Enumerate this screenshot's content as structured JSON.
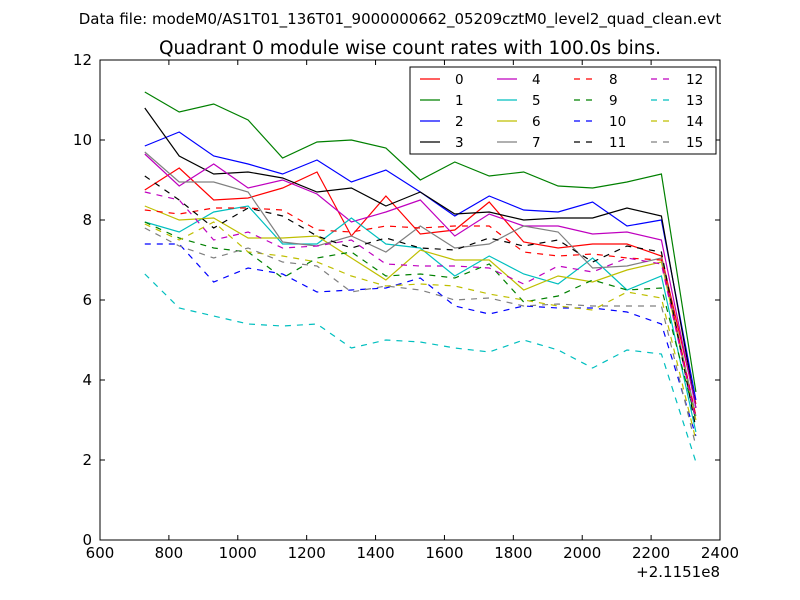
{
  "chart_data": {
    "type": "line",
    "suptitle": "Data file: modeM0/AS1T01_136T01_9000000662_05209cztM0_level2_quad_clean.evt",
    "title": "Quadrant 0 module wise count rates with 100.0s bins.",
    "xlabel": "",
    "ylabel": "",
    "xlim": [
      600,
      2400
    ],
    "ylim": [
      0,
      12
    ],
    "x_offset_label": "+2.1151e8",
    "xticks": [
      600,
      800,
      1000,
      1200,
      1400,
      1600,
      1800,
      2000,
      2200,
      2400
    ],
    "yticks": [
      0,
      2,
      4,
      6,
      8,
      10,
      12
    ],
    "x": [
      730,
      830,
      930,
      1030,
      1130,
      1230,
      1330,
      1430,
      1530,
      1630,
      1730,
      1830,
      1930,
      2030,
      2130,
      2230,
      2330
    ],
    "legend": {
      "location": "upper-right",
      "columns": 4
    },
    "series": [
      {
        "name": "0",
        "color": "#ff0000",
        "dash": "solid",
        "values": [
          8.75,
          9.3,
          8.5,
          8.55,
          8.8,
          9.2,
          7.6,
          8.6,
          7.65,
          7.75,
          8.45,
          7.45,
          7.3,
          7.4,
          7.4,
          7.1,
          3.4
        ]
      },
      {
        "name": "1",
        "color": "#008000",
        "dash": "solid",
        "values": [
          11.2,
          10.7,
          10.9,
          10.5,
          9.55,
          9.95,
          10.0,
          9.8,
          9.0,
          9.45,
          9.1,
          9.2,
          8.85,
          8.8,
          8.95,
          9.15,
          3.7
        ]
      },
      {
        "name": "2",
        "color": "#0000ff",
        "dash": "solid",
        "values": [
          9.85,
          10.2,
          9.6,
          9.4,
          9.15,
          9.5,
          8.95,
          9.25,
          8.7,
          8.1,
          8.6,
          8.25,
          8.2,
          8.45,
          7.85,
          8.0,
          3.5
        ]
      },
      {
        "name": "3",
        "color": "#000000",
        "dash": "solid",
        "values": [
          10.8,
          9.6,
          9.15,
          9.2,
          9.05,
          8.7,
          8.8,
          8.35,
          8.7,
          8.15,
          8.2,
          8.0,
          8.05,
          8.05,
          8.3,
          8.1,
          3.3
        ]
      },
      {
        "name": "4",
        "color": "#bf00bf",
        "dash": "solid",
        "values": [
          9.65,
          8.85,
          9.4,
          8.8,
          9.0,
          8.65,
          7.95,
          8.2,
          8.5,
          7.6,
          8.15,
          7.85,
          7.85,
          7.65,
          7.7,
          7.5,
          3.3
        ]
      },
      {
        "name": "5",
        "color": "#00bfbf",
        "dash": "solid",
        "values": [
          7.95,
          7.7,
          8.2,
          8.35,
          7.4,
          7.4,
          8.05,
          7.4,
          7.3,
          6.6,
          7.1,
          6.65,
          6.4,
          7.05,
          6.25,
          6.6,
          2.7
        ]
      },
      {
        "name": "6",
        "color": "#bfbf00",
        "dash": "solid",
        "values": [
          8.35,
          8.0,
          8.05,
          7.55,
          7.55,
          7.6,
          7.05,
          6.5,
          7.25,
          7.0,
          7.0,
          6.25,
          6.6,
          6.45,
          6.75,
          6.95,
          3.0
        ]
      },
      {
        "name": "7",
        "color": "#808080",
        "dash": "solid",
        "values": [
          9.7,
          8.95,
          8.95,
          8.7,
          7.45,
          7.35,
          7.6,
          7.2,
          7.85,
          7.3,
          7.4,
          7.85,
          7.7,
          6.8,
          6.85,
          7.05,
          3.1
        ]
      },
      {
        "name": "8",
        "color": "#ff0000",
        "dash": "dashed",
        "values": [
          8.25,
          8.15,
          8.3,
          8.3,
          8.25,
          7.75,
          7.7,
          7.85,
          7.8,
          7.85,
          7.85,
          7.2,
          7.1,
          7.15,
          7.05,
          7.0,
          3.1
        ]
      },
      {
        "name": "9",
        "color": "#008000",
        "dash": "dashed",
        "values": [
          7.95,
          7.55,
          7.3,
          7.2,
          6.55,
          7.05,
          7.2,
          6.6,
          6.65,
          6.55,
          6.9,
          5.95,
          6.1,
          6.5,
          6.25,
          6.3,
          3.0
        ]
      },
      {
        "name": "10",
        "color": "#0000ff",
        "dash": "dashed",
        "values": [
          7.4,
          7.4,
          6.45,
          6.8,
          6.65,
          6.2,
          6.25,
          6.3,
          6.55,
          5.85,
          5.65,
          5.85,
          5.8,
          5.8,
          5.7,
          5.4,
          2.6
        ]
      },
      {
        "name": "11",
        "color": "#000000",
        "dash": "dashed",
        "values": [
          9.1,
          8.5,
          7.8,
          8.3,
          8.1,
          7.6,
          7.3,
          7.55,
          7.3,
          7.25,
          7.55,
          7.35,
          7.5,
          6.95,
          7.35,
          7.2,
          2.8
        ]
      },
      {
        "name": "12",
        "color": "#bf00bf",
        "dash": "dashed",
        "values": [
          8.7,
          8.5,
          7.5,
          7.7,
          7.3,
          7.35,
          7.5,
          6.9,
          6.85,
          6.85,
          6.8,
          6.4,
          6.85,
          6.7,
          7.05,
          6.9,
          3.0
        ]
      },
      {
        "name": "13",
        "color": "#00bfbf",
        "dash": "dashed",
        "values": [
          6.65,
          5.8,
          5.6,
          5.4,
          5.35,
          5.4,
          4.8,
          5.0,
          4.95,
          4.8,
          4.7,
          5.0,
          4.75,
          4.3,
          4.75,
          4.65,
          1.95
        ]
      },
      {
        "name": "14",
        "color": "#bfbf00",
        "dash": "dashed",
        "values": [
          7.9,
          7.5,
          7.95,
          7.2,
          7.1,
          6.95,
          6.6,
          6.35,
          6.4,
          6.35,
          6.15,
          6.0,
          5.85,
          5.75,
          6.2,
          6.05,
          2.5
        ]
      },
      {
        "name": "15",
        "color": "#808080",
        "dash": "dashed",
        "values": [
          7.8,
          7.35,
          7.05,
          7.3,
          6.95,
          6.85,
          6.2,
          6.35,
          6.25,
          6.0,
          6.05,
          5.85,
          5.9,
          5.85,
          5.85,
          5.85,
          2.35
        ]
      }
    ]
  }
}
